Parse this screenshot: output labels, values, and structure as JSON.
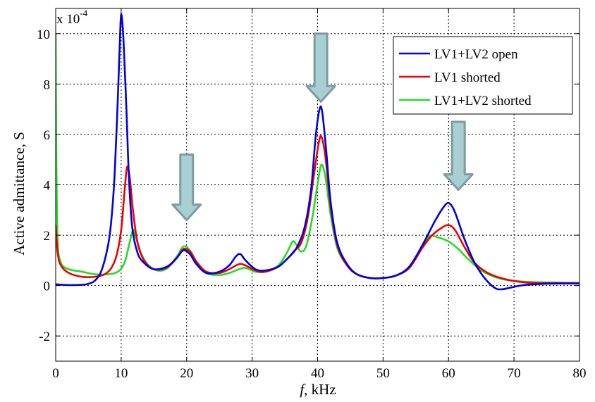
{
  "chart_data": {
    "type": "line",
    "xlabel_italic": "f",
    "xlabel_rest": ", kHz",
    "ylabel": "Active admittance, S",
    "y_multiplier_base": "x 10",
    "y_multiplier_exp": "-4",
    "xlim": [
      0,
      80
    ],
    "ylim": [
      -3,
      11
    ],
    "xticks": [
      0,
      10,
      20,
      30,
      40,
      50,
      60,
      70,
      80
    ],
    "yticks": [
      -2,
      0,
      2,
      4,
      6,
      8,
      10
    ],
    "grid": true,
    "legend_position": "top-right",
    "series": [
      {
        "name": "LV1+LV2 open",
        "color": "#0000e0",
        "points": [
          [
            0,
            0.05
          ],
          [
            2,
            0.02
          ],
          [
            4,
            0.03
          ],
          [
            5,
            0.07
          ],
          [
            6,
            0.2
          ],
          [
            7,
            0.6
          ],
          [
            8,
            1.6
          ],
          [
            8.5,
            2.6
          ],
          [
            9,
            4.4
          ],
          [
            9.5,
            7.5
          ],
          [
            9.9,
            10.4
          ],
          [
            10.1,
            10.65
          ],
          [
            10.4,
            9.5
          ],
          [
            10.8,
            7.0
          ],
          [
            11.2,
            4.2
          ],
          [
            11.7,
            2.3
          ],
          [
            12.5,
            1.3
          ],
          [
            13.5,
            0.9
          ],
          [
            15,
            0.65
          ],
          [
            17,
            0.75
          ],
          [
            18.5,
            1.1
          ],
          [
            19.5,
            1.4
          ],
          [
            20.5,
            1.25
          ],
          [
            21.5,
            0.85
          ],
          [
            23,
            0.5
          ],
          [
            25,
            0.55
          ],
          [
            26.5,
            0.8
          ],
          [
            27.5,
            1.15
          ],
          [
            28.2,
            1.25
          ],
          [
            29,
            1.0
          ],
          [
            30.5,
            0.65
          ],
          [
            32,
            0.6
          ],
          [
            34,
            0.75
          ],
          [
            35.5,
            1.1
          ],
          [
            36.8,
            1.5
          ],
          [
            38,
            2.3
          ],
          [
            39,
            3.8
          ],
          [
            39.7,
            5.9
          ],
          [
            40.3,
            7.0
          ],
          [
            40.7,
            6.9
          ],
          [
            41.3,
            5.4
          ],
          [
            42,
            3.3
          ],
          [
            43,
            1.7
          ],
          [
            44.5,
            0.85
          ],
          [
            46,
            0.45
          ],
          [
            48,
            0.3
          ],
          [
            50,
            0.3
          ],
          [
            52,
            0.4
          ],
          [
            54,
            0.75
          ],
          [
            56,
            1.6
          ],
          [
            58,
            2.6
          ],
          [
            59.5,
            3.2
          ],
          [
            60.2,
            3.25
          ],
          [
            61,
            2.9
          ],
          [
            62.5,
            1.8
          ],
          [
            64,
            0.9
          ],
          [
            65.5,
            0.3
          ],
          [
            67,
            -0.08
          ],
          [
            68,
            -0.15
          ],
          [
            69.5,
            -0.08
          ],
          [
            71,
            0.0
          ],
          [
            73,
            0.05
          ],
          [
            76,
            0.08
          ],
          [
            80,
            0.08
          ]
        ]
      },
      {
        "name": "LV1 shorted",
        "color": "#ee0000",
        "points": [
          [
            0,
            2.4
          ],
          [
            0.3,
            1.3
          ],
          [
            0.8,
            0.8
          ],
          [
            2,
            0.5
          ],
          [
            4,
            0.35
          ],
          [
            6,
            0.35
          ],
          [
            7.5,
            0.45
          ],
          [
            8.5,
            0.7
          ],
          [
            9.3,
            1.2
          ],
          [
            10,
            2.2
          ],
          [
            10.5,
            3.7
          ],
          [
            10.9,
            4.7
          ],
          [
            11.3,
            4.3
          ],
          [
            11.8,
            3.0
          ],
          [
            12.5,
            1.7
          ],
          [
            13.5,
            1.0
          ],
          [
            15,
            0.65
          ],
          [
            17,
            0.72
          ],
          [
            18.5,
            1.1
          ],
          [
            19.5,
            1.45
          ],
          [
            20.5,
            1.35
          ],
          [
            21.5,
            0.95
          ],
          [
            23,
            0.55
          ],
          [
            25,
            0.5
          ],
          [
            26.5,
            0.65
          ],
          [
            28,
            0.85
          ],
          [
            29,
            0.8
          ],
          [
            30.5,
            0.6
          ],
          [
            32,
            0.55
          ],
          [
            34,
            0.75
          ],
          [
            35.5,
            1.1
          ],
          [
            36.5,
            1.4
          ],
          [
            37.5,
            1.7
          ],
          [
            38.5,
            2.7
          ],
          [
            39.5,
            4.5
          ],
          [
            40.2,
            5.7
          ],
          [
            40.6,
            5.9
          ],
          [
            41.2,
            5.1
          ],
          [
            42,
            3.1
          ],
          [
            43,
            1.6
          ],
          [
            44.5,
            0.8
          ],
          [
            46,
            0.45
          ],
          [
            48,
            0.3
          ],
          [
            50,
            0.3
          ],
          [
            52,
            0.4
          ],
          [
            54,
            0.7
          ],
          [
            56,
            1.5
          ],
          [
            57.5,
            2.0
          ],
          [
            59,
            2.3
          ],
          [
            60,
            2.4
          ],
          [
            61,
            2.2
          ],
          [
            62.5,
            1.5
          ],
          [
            64,
            0.9
          ],
          [
            66,
            0.5
          ],
          [
            68,
            0.3
          ],
          [
            70,
            0.18
          ],
          [
            73,
            0.1
          ],
          [
            76,
            0.1
          ],
          [
            80,
            0.1
          ]
        ]
      },
      {
        "name": "LV1+LV2 shorted",
        "color": "#22dd22",
        "points": [
          [
            0,
            10.0
          ],
          [
            0.1,
            5.0
          ],
          [
            0.3,
            1.8
          ],
          [
            0.8,
            0.9
          ],
          [
            2,
            0.65
          ],
          [
            4,
            0.55
          ],
          [
            6,
            0.45
          ],
          [
            8,
            0.45
          ],
          [
            9.5,
            0.55
          ],
          [
            10.5,
            0.9
          ],
          [
            11.2,
            1.6
          ],
          [
            11.8,
            2.2
          ],
          [
            12.3,
            1.9
          ],
          [
            13,
            1.3
          ],
          [
            14,
            0.85
          ],
          [
            15.5,
            0.6
          ],
          [
            17,
            0.68
          ],
          [
            18.5,
            1.15
          ],
          [
            19.5,
            1.55
          ],
          [
            20.5,
            1.4
          ],
          [
            21.5,
            0.95
          ],
          [
            23,
            0.5
          ],
          [
            25,
            0.42
          ],
          [
            26.5,
            0.5
          ],
          [
            28,
            0.65
          ],
          [
            29,
            0.7
          ],
          [
            30.5,
            0.55
          ],
          [
            32,
            0.55
          ],
          [
            34,
            0.8
          ],
          [
            35.3,
            1.3
          ],
          [
            36.2,
            1.75
          ],
          [
            36.8,
            1.6
          ],
          [
            37.5,
            1.35
          ],
          [
            38.3,
            1.6
          ],
          [
            39.2,
            2.7
          ],
          [
            40.1,
            4.2
          ],
          [
            40.6,
            4.8
          ],
          [
            41.2,
            4.3
          ],
          [
            42,
            2.8
          ],
          [
            43,
            1.5
          ],
          [
            44.5,
            0.8
          ],
          [
            46,
            0.45
          ],
          [
            48,
            0.3
          ],
          [
            50,
            0.3
          ],
          [
            52,
            0.4
          ],
          [
            54,
            0.7
          ],
          [
            55.5,
            1.3
          ],
          [
            57,
            1.95
          ],
          [
            58.5,
            1.9
          ],
          [
            60,
            1.75
          ],
          [
            61.5,
            1.45
          ],
          [
            63,
            1.05
          ],
          [
            65,
            0.6
          ],
          [
            67,
            0.35
          ],
          [
            69,
            0.22
          ],
          [
            72,
            0.15
          ],
          [
            76,
            0.12
          ],
          [
            80,
            0.1
          ]
        ]
      }
    ],
    "arrows": [
      {
        "x": 20,
        "y_top": 5.2,
        "y_bottom": 2.6
      },
      {
        "x": 40.5,
        "y_top": 10.0,
        "y_bottom": 7.3
      },
      {
        "x": 61.5,
        "y_top": 6.5,
        "y_bottom": 3.8
      }
    ],
    "arrow_color": "#a8cfd2",
    "arrow_stroke": "#7f9aa0"
  }
}
